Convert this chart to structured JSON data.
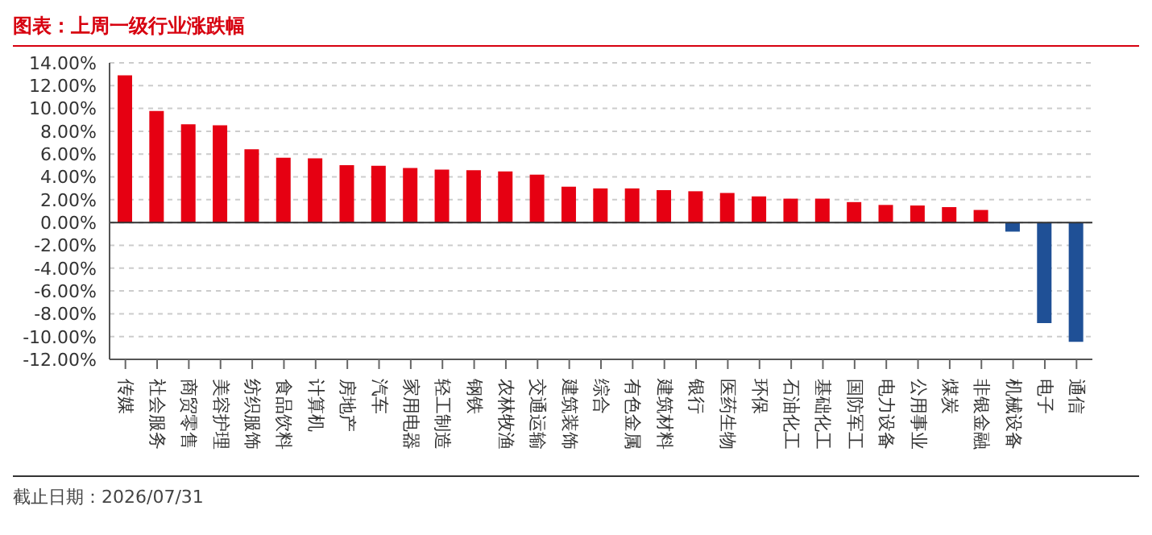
{
  "chart_data": {
    "type": "bar",
    "title": "图表：上周一级行业涨跌幅",
    "categories": [
      "传媒",
      "社会服务",
      "商贸零售",
      "美容护理",
      "纺织服饰",
      "食品饮料",
      "计算机",
      "房地产",
      "汽车",
      "家用电器",
      "轻工制造",
      "钢铁",
      "农林牧渔",
      "交通运输",
      "建筑装饰",
      "综合",
      "有色金属",
      "建筑材料",
      "银行",
      "医药生物",
      "环保",
      "石油化工",
      "基础化工",
      "国防军工",
      "电力设备",
      "公用事业",
      "煤炭",
      "非银金融",
      "机械设备",
      "电子",
      "通信"
    ],
    "values": [
      12.9,
      9.77,
      8.62,
      8.52,
      6.43,
      5.68,
      5.63,
      5.03,
      4.98,
      4.78,
      4.63,
      4.58,
      4.48,
      4.19,
      3.14,
      2.99,
      2.99,
      2.84,
      2.74,
      2.59,
      2.29,
      2.09,
      2.09,
      1.79,
      1.54,
      1.49,
      1.35,
      1.1,
      -0.8,
      -8.82,
      -10.46
    ],
    "colors": [
      "#e60012",
      "#e60012",
      "#e60012",
      "#e60012",
      "#e60012",
      "#e60012",
      "#e60012",
      "#e60012",
      "#e60012",
      "#e60012",
      "#e60012",
      "#e60012",
      "#e60012",
      "#e60012",
      "#e60012",
      "#e60012",
      "#e60012",
      "#e60012",
      "#e60012",
      "#e60012",
      "#e60012",
      "#e60012",
      "#e60012",
      "#e60012",
      "#e60012",
      "#e60012",
      "#e60012",
      "#e60012",
      "#1f5096",
      "#1f5096",
      "#1f5096"
    ],
    "ylim": [
      -12,
      14
    ],
    "yticks": [
      {
        "value": -12,
        "label": "-12.00%"
      },
      {
        "value": -10,
        "label": "-10.00%"
      },
      {
        "value": -8,
        "label": "-8.00%"
      },
      {
        "value": -6,
        "label": "-6.00%"
      },
      {
        "value": -4,
        "label": "-4.00%"
      },
      {
        "value": -2,
        "label": "-2.00%"
      },
      {
        "value": 0,
        "label": "0.00%"
      },
      {
        "value": 2,
        "label": "2.00%"
      },
      {
        "value": 4,
        "label": "4.00%"
      },
      {
        "value": 6,
        "label": "6.00%"
      },
      {
        "value": 8,
        "label": "8.00%"
      },
      {
        "value": 10,
        "label": "10.00%"
      },
      {
        "value": 12,
        "label": "12.00%"
      },
      {
        "value": 14,
        "label": "14.00%"
      }
    ],
    "grid": "y",
    "legend": false,
    "annotations": [
      "截止日期：2026/07/31"
    ]
  }
}
